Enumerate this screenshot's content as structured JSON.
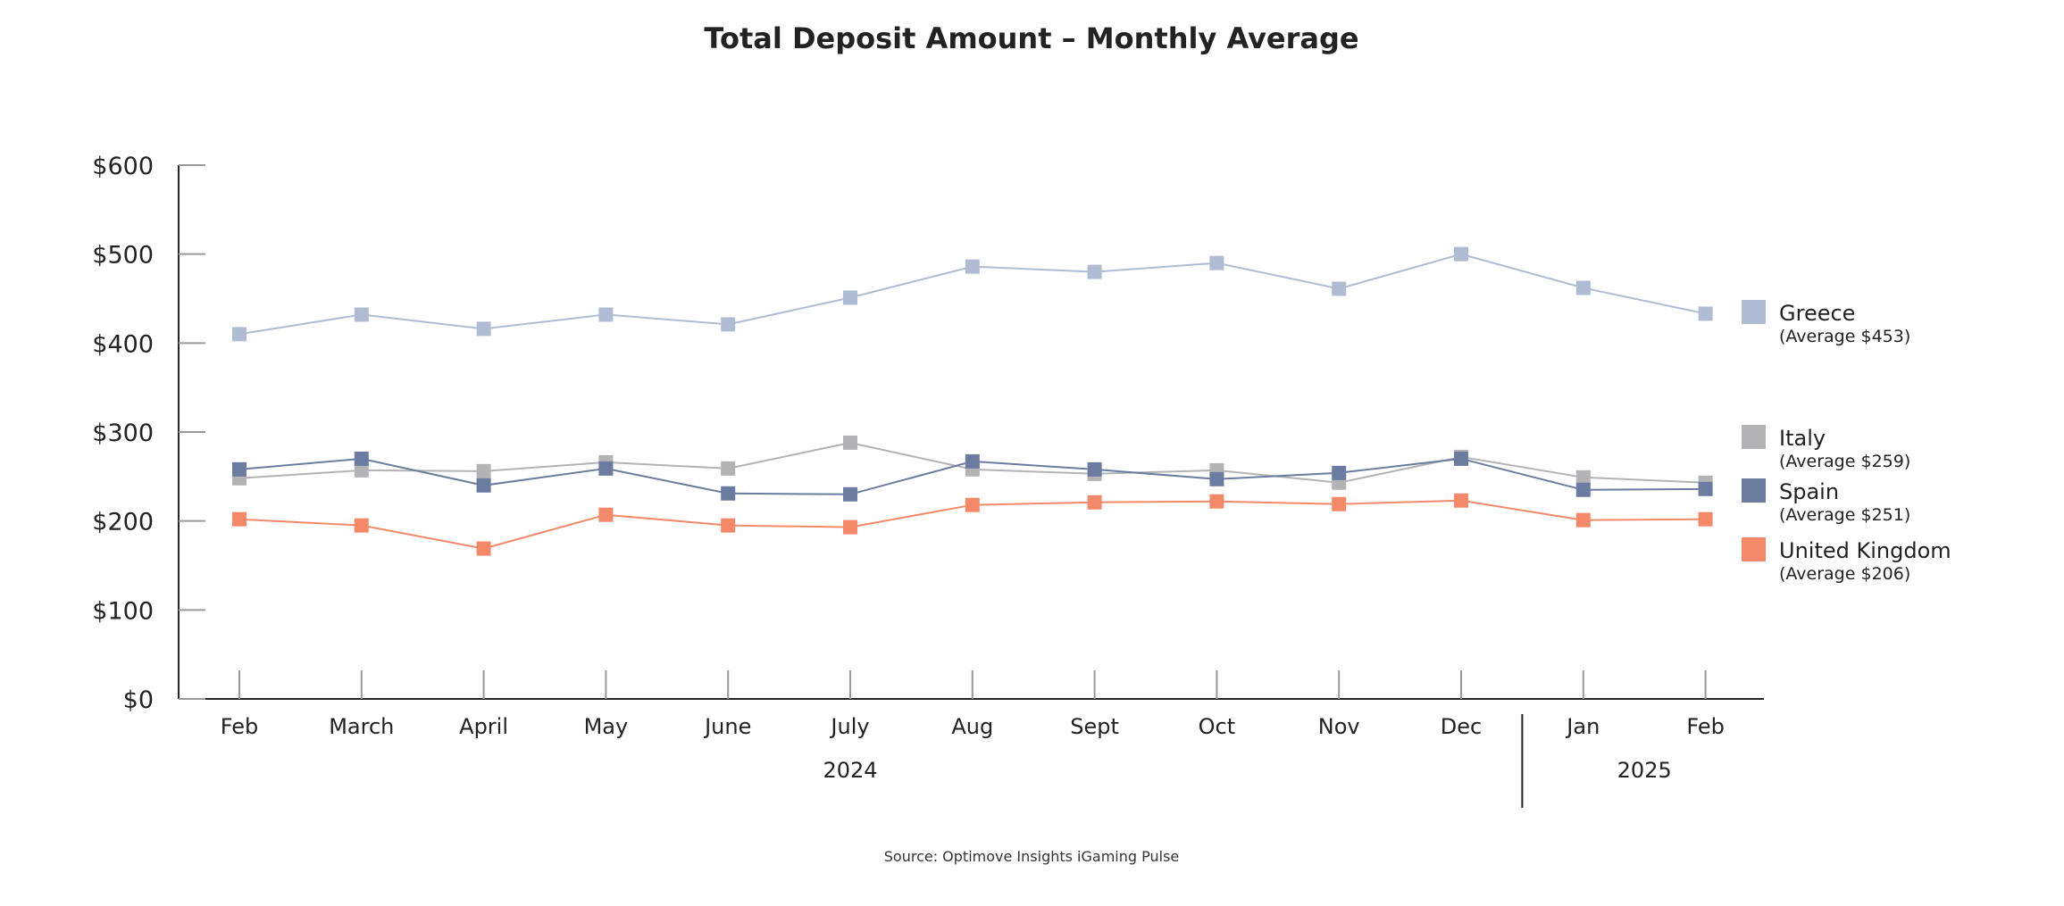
{
  "chart_data": {
    "type": "line",
    "title": "Total Deposit Amount – Monthly Average",
    "source": "Source: Optimove Insights iGaming Pulse",
    "categories": [
      "Feb",
      "March",
      "April",
      "May",
      "June",
      "July",
      "Aug",
      "Sept",
      "Oct",
      "Nov",
      "Dec",
      "Jan",
      "Feb"
    ],
    "year_groups": [
      {
        "label": "2024",
        "from_index": 0,
        "to_index": 10
      },
      {
        "label": "2025",
        "from_index": 11,
        "to_index": 12
      }
    ],
    "ylim": [
      0,
      600
    ],
    "yticks": [
      0,
      100,
      200,
      300,
      400,
      500,
      600
    ],
    "ytick_labels": [
      "$0",
      "$100",
      "$200",
      "$300",
      "$400",
      "$500",
      "$600"
    ],
    "grid": false,
    "legend_position": "right",
    "series": [
      {
        "name": "Greece",
        "average_label": "(Average $453)",
        "color": "#b0bcd4",
        "values": [
          410,
          432,
          416,
          432,
          421,
          451,
          486,
          480,
          490,
          461,
          500,
          462,
          433
        ]
      },
      {
        "name": "Italy",
        "average_label": "(Average $259)",
        "color": "#b3b3b6",
        "values": [
          248,
          257,
          256,
          266,
          259,
          288,
          258,
          253,
          257,
          243,
          272,
          249,
          243
        ]
      },
      {
        "name": "Spain",
        "average_label": "(Average $251)",
        "color": "#6c7ba0",
        "values": [
          258,
          270,
          240,
          259,
          231,
          230,
          267,
          258,
          247,
          254,
          270,
          235,
          236
        ]
      },
      {
        "name": "United Kingdom",
        "average_label": "(Average $206)",
        "color": "#f4896a",
        "values": [
          202,
          195,
          169,
          207,
          195,
          193,
          218,
          221,
          222,
          219,
          223,
          201,
          202
        ]
      }
    ]
  },
  "colors": {
    "axis": "#222222",
    "tick": "#999999",
    "text": "#222222"
  }
}
